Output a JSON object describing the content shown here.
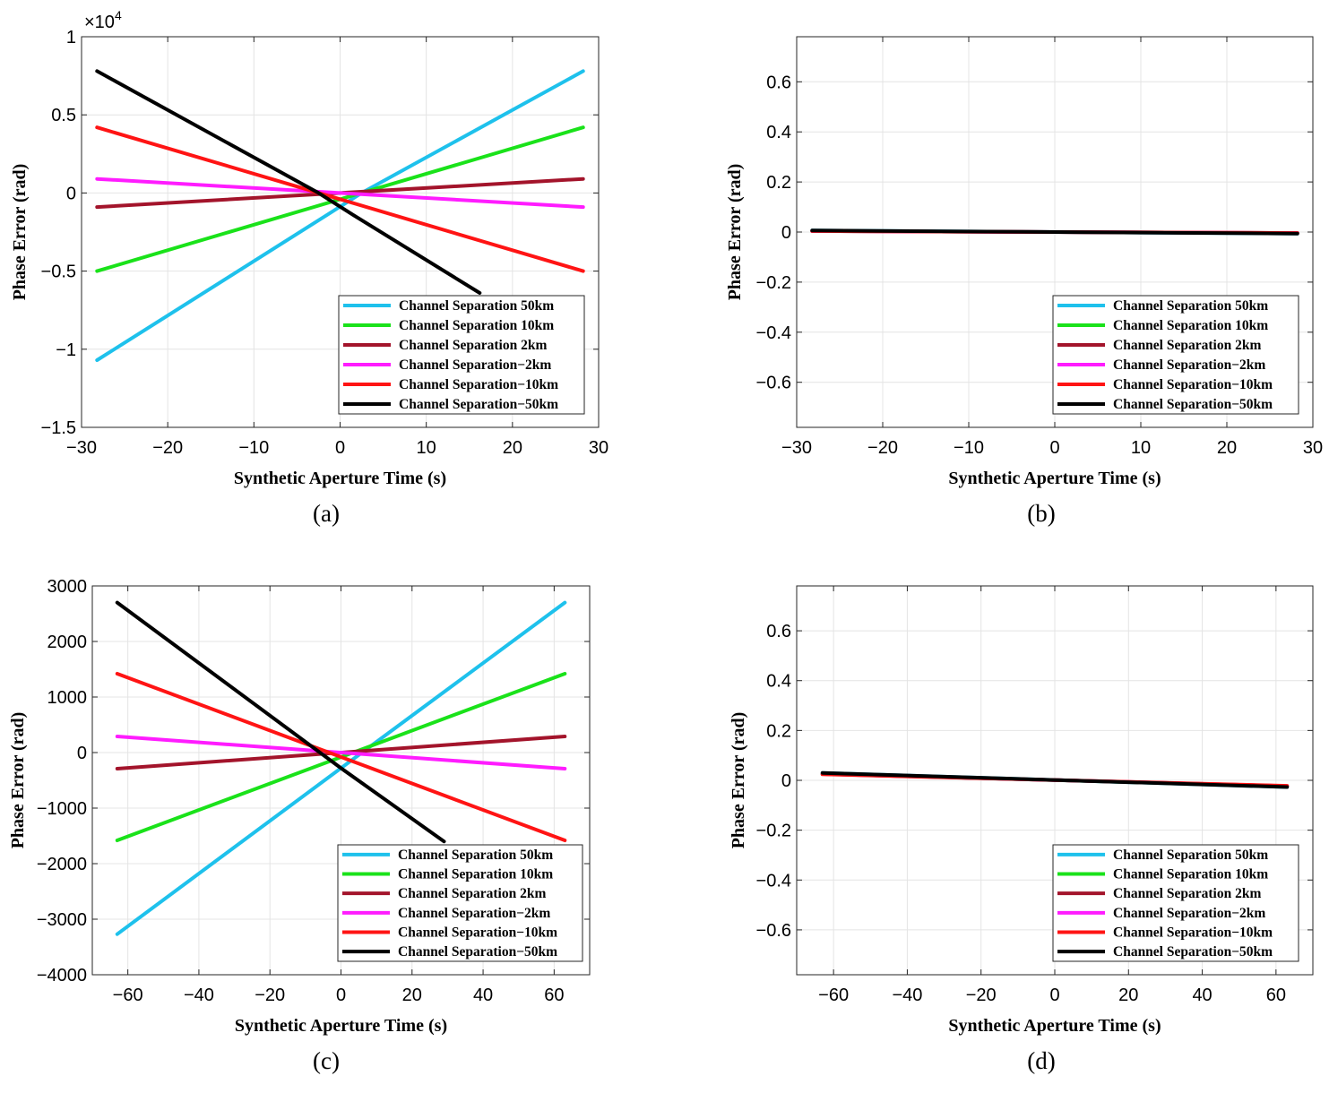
{
  "chart_data": [
    {
      "id": "a",
      "type": "line",
      "caption": "(a)",
      "xlabel": "Synthetic Aperture Time (s)",
      "ylabel": "Phase Error (rad)",
      "xlim": [
        -30,
        30
      ],
      "ylim": [
        -15000,
        10000
      ],
      "xticks": [
        -30,
        -20,
        -10,
        0,
        10,
        20,
        30
      ],
      "xtick_labels": [
        "−30",
        "−20",
        "−10",
        "0",
        "10",
        "20",
        "30"
      ],
      "yticks": [
        -15000,
        -10000,
        -5000,
        0,
        5000,
        10000
      ],
      "ytick_labels": [
        "−1.5",
        "−1",
        "−0.5",
        "0",
        "0.5",
        "1"
      ],
      "exponent_label": "×10",
      "exponent_power": "4",
      "grid": true,
      "legend_position": "bottom-right",
      "series": [
        {
          "name": "Channel Separation 50km",
          "color": "#1ec1ec",
          "x": [
            -28.2,
            -1.5,
            2.5,
            28.2
          ],
          "y": [
            -10700,
            -1400,
            0,
            7800
          ]
        },
        {
          "name": "Channel Separation 10km",
          "color": "#1ae21a",
          "x": [
            -28.2,
            28.2
          ],
          "y": [
            -5000,
            4200
          ]
        },
        {
          "name": "Channel Separation 2km",
          "color": "#a3142b",
          "x": [
            -28.2,
            28.2
          ],
          "y": [
            -900,
            900
          ]
        },
        {
          "name": "Channel Separation−2km",
          "color": "#ff1cff",
          "x": [
            -28.2,
            28.2
          ],
          "y": [
            900,
            -900
          ]
        },
        {
          "name": "Channel Separation−10km",
          "color": "#ff1414",
          "x": [
            -28.2,
            28.2
          ],
          "y": [
            4200,
            -5000
          ]
        },
        {
          "name": "Channel Separation−50km",
          "color": "#000000",
          "x": [
            -28.2,
            -2.5,
            1.5,
            16.2
          ],
          "y": [
            7800,
            0,
            -1400,
            -6400
          ]
        }
      ]
    },
    {
      "id": "b",
      "type": "line",
      "caption": "(b)",
      "xlabel": "Synthetic Aperture Time (s)",
      "ylabel": "Phase Error (rad)",
      "xlim": [
        -30,
        30
      ],
      "ylim": [
        -0.78,
        0.78
      ],
      "xticks": [
        -30,
        -20,
        -10,
        0,
        10,
        20,
        30
      ],
      "xtick_labels": [
        "−30",
        "−20",
        "−10",
        "0",
        "10",
        "20",
        "30"
      ],
      "yticks": [
        -0.6,
        -0.4,
        -0.2,
        0,
        0.2,
        0.4,
        0.6
      ],
      "ytick_labels": [
        "−0.6",
        "−0.4",
        "−0.2",
        "0",
        "0.2",
        "0.4",
        "0.6"
      ],
      "grid": true,
      "legend_position": "bottom-right",
      "series": [
        {
          "name": "Channel Separation 50km",
          "color": "#1ec1ec",
          "x": [
            -28.2,
            28.2
          ],
          "y": [
            0.006,
            -0.006
          ]
        },
        {
          "name": "Channel Separation 10km",
          "color": "#1ae21a",
          "x": [
            -28.2,
            28.2
          ],
          "y": [
            0.004,
            -0.004
          ]
        },
        {
          "name": "Channel Separation 2km",
          "color": "#a3142b",
          "x": [
            -28.2,
            28.2
          ],
          "y": [
            0.004,
            -0.004
          ]
        },
        {
          "name": "Channel Separation−2km",
          "color": "#ff1cff",
          "x": [
            -28.2,
            28.2
          ],
          "y": [
            0.004,
            -0.004
          ]
        },
        {
          "name": "Channel Separation−10km",
          "color": "#ff1414",
          "x": [
            -28.2,
            28.2
          ],
          "y": [
            0.004,
            -0.004
          ]
        },
        {
          "name": "Channel Separation−50km",
          "color": "#000000",
          "x": [
            -28.2,
            28.2
          ],
          "y": [
            0.006,
            -0.006
          ]
        }
      ]
    },
    {
      "id": "c",
      "type": "line",
      "caption": "(c)",
      "xlabel": "Synthetic Aperture Time (s)",
      "ylabel": "Phase Error (rad)",
      "xlim": [
        -70,
        70
      ],
      "ylim": [
        -4000,
        3000
      ],
      "xticks": [
        -60,
        -40,
        -20,
        0,
        20,
        40,
        60
      ],
      "xtick_labels": [
        "−60",
        "−40",
        "−20",
        "0",
        "20",
        "40",
        "60"
      ],
      "yticks": [
        -4000,
        -3000,
        -2000,
        -1000,
        0,
        1000,
        2000,
        3000
      ],
      "ytick_labels": [
        "−4000",
        "−3000",
        "−2000",
        "−1000",
        "0",
        "1000",
        "2000",
        "3000"
      ],
      "grid": true,
      "legend_position": "bottom-right",
      "series": [
        {
          "name": "Channel Separation 50km",
          "color": "#1ec1ec",
          "x": [
            -63,
            0,
            63
          ],
          "y": [
            -3270,
            -280,
            2700
          ]
        },
        {
          "name": "Channel Separation 10km",
          "color": "#1ae21a",
          "x": [
            -63,
            63
          ],
          "y": [
            -1580,
            1420
          ]
        },
        {
          "name": "Channel Separation 2km",
          "color": "#a3142b",
          "x": [
            -63,
            63
          ],
          "y": [
            -290,
            290
          ]
        },
        {
          "name": "Channel Separation−2km",
          "color": "#ff1cff",
          "x": [
            -63,
            63
          ],
          "y": [
            290,
            -290
          ]
        },
        {
          "name": "Channel Separation−10km",
          "color": "#ff1414",
          "x": [
            -63,
            63
          ],
          "y": [
            1420,
            -1580
          ]
        },
        {
          "name": "Channel Separation−50km",
          "color": "#000000",
          "x": [
            -63,
            0,
            29
          ],
          "y": [
            2700,
            -280,
            -1600
          ]
        }
      ]
    },
    {
      "id": "d",
      "type": "line",
      "caption": "(d)",
      "xlabel": "Synthetic Aperture Time (s)",
      "ylabel": "Phase Error (rad)",
      "xlim": [
        -70,
        70
      ],
      "ylim": [
        -0.78,
        0.78
      ],
      "xticks": [
        -60,
        -40,
        -20,
        0,
        20,
        40,
        60
      ],
      "xtick_labels": [
        "−60",
        "−40",
        "−20",
        "0",
        "20",
        "40",
        "60"
      ],
      "yticks": [
        -0.6,
        -0.4,
        -0.2,
        0,
        0.2,
        0.4,
        0.6
      ],
      "ytick_labels": [
        "−0.6",
        "−0.4",
        "−0.2",
        "0",
        "0.2",
        "0.4",
        "0.6"
      ],
      "grid": true,
      "legend_position": "bottom-right",
      "series": [
        {
          "name": "Channel Separation 50km",
          "color": "#1ec1ec",
          "x": [
            -63,
            63
          ],
          "y": [
            0.03,
            -0.027
          ]
        },
        {
          "name": "Channel Separation 10km",
          "color": "#1ae21a",
          "x": [
            -63,
            63
          ],
          "y": [
            0.026,
            -0.024
          ]
        },
        {
          "name": "Channel Separation 2km",
          "color": "#a3142b",
          "x": [
            -63,
            63
          ],
          "y": [
            0.025,
            -0.023
          ]
        },
        {
          "name": "Channel Separation−2km",
          "color": "#ff1cff",
          "x": [
            -63,
            63
          ],
          "y": [
            0.025,
            -0.023
          ]
        },
        {
          "name": "Channel Separation−10km",
          "color": "#ff1414",
          "x": [
            -63,
            63
          ],
          "y": [
            0.024,
            -0.022
          ]
        },
        {
          "name": "Channel Separation−50km",
          "color": "#000000",
          "x": [
            -63,
            63
          ],
          "y": [
            0.03,
            -0.027
          ]
        }
      ]
    }
  ]
}
